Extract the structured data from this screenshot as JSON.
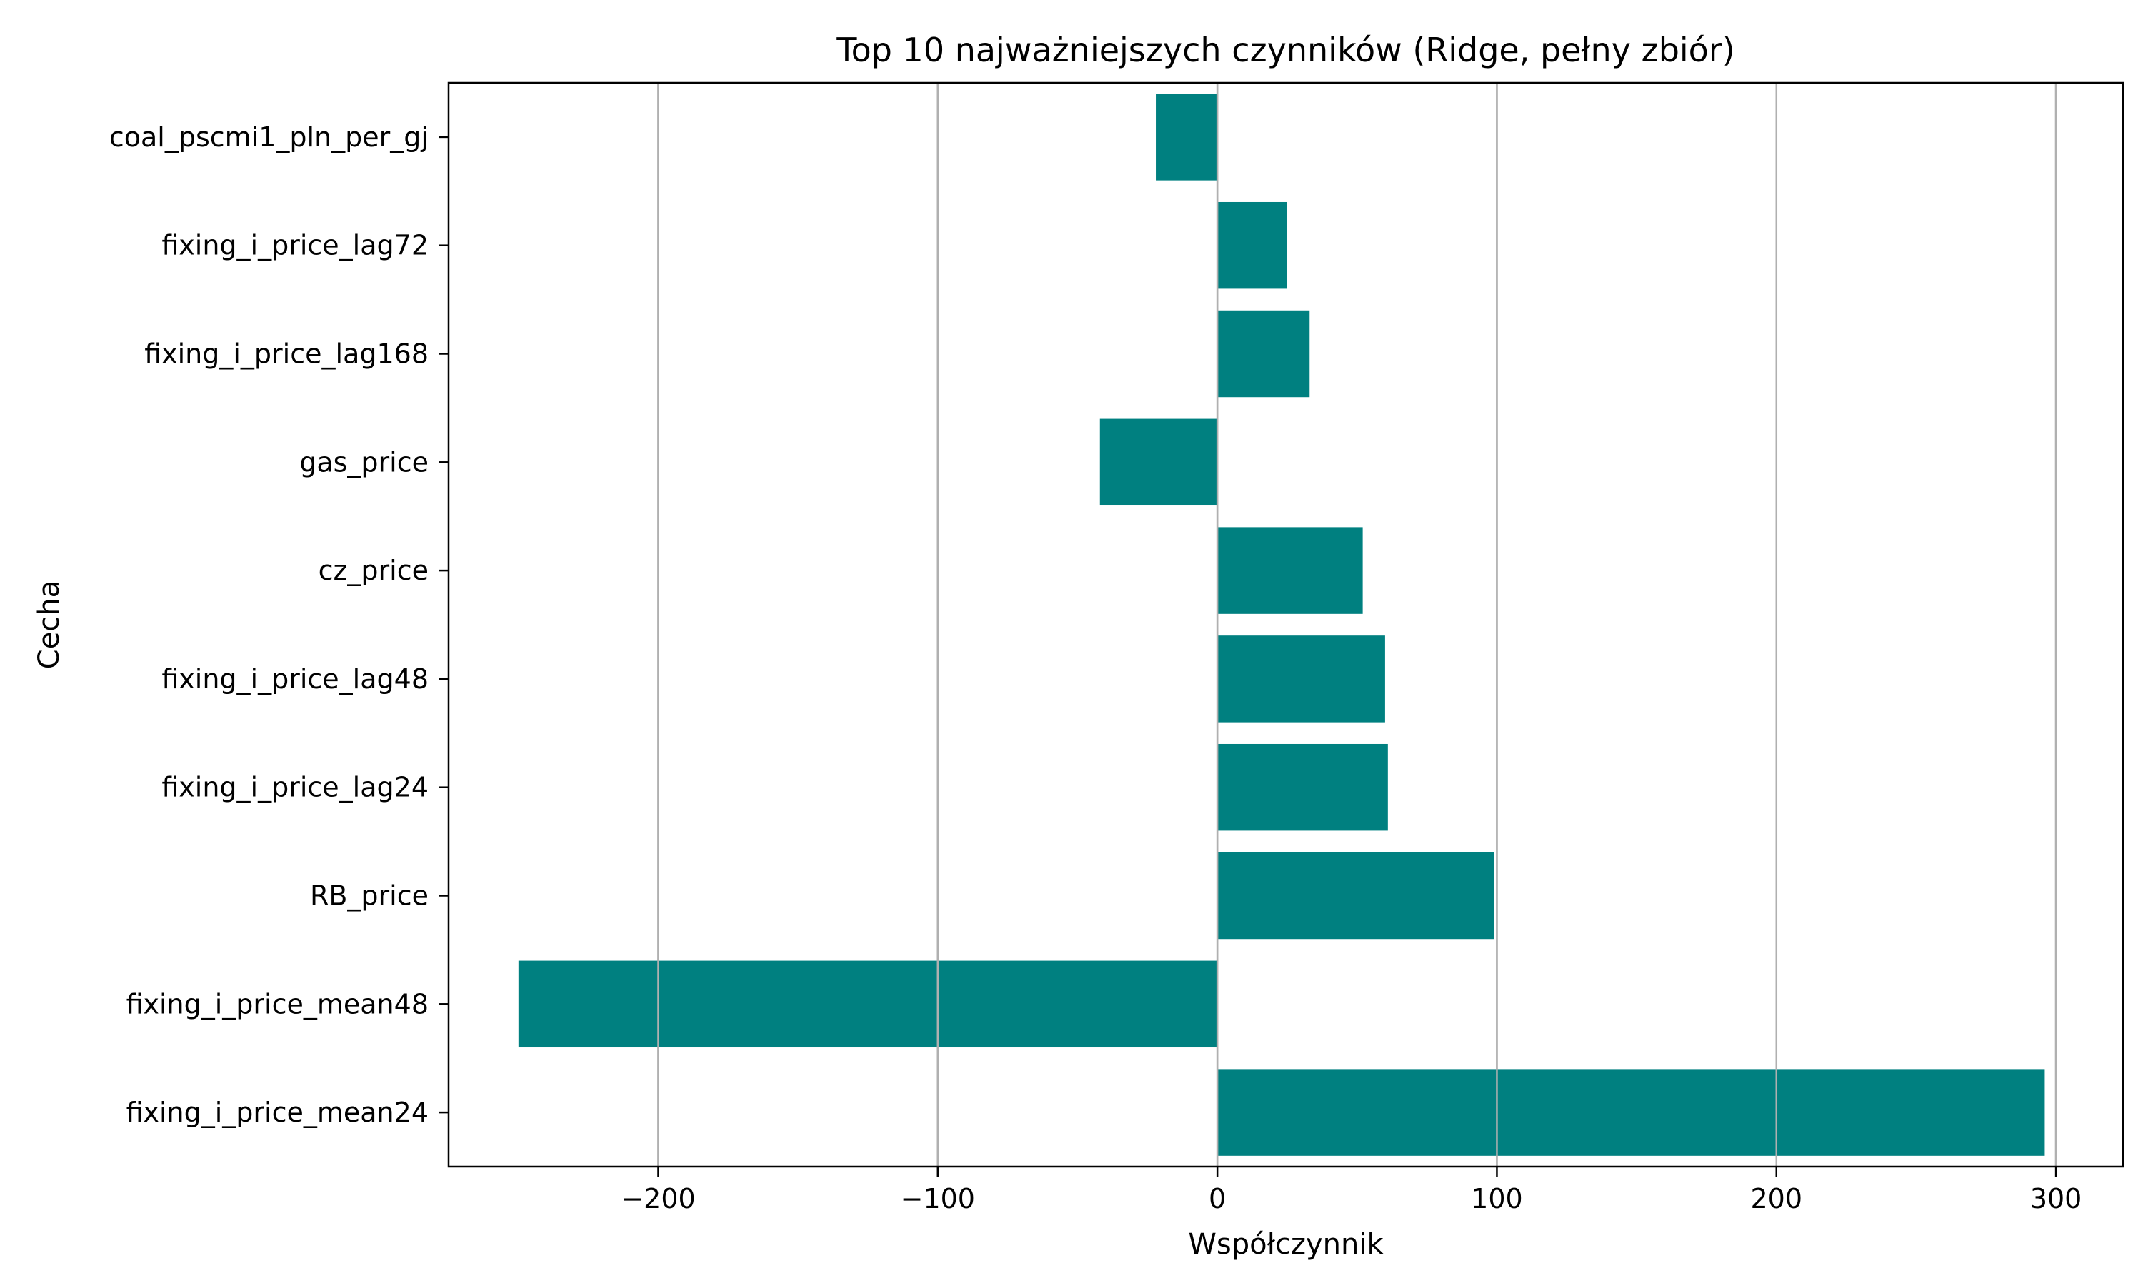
{
  "chart_data": {
    "type": "bar",
    "orientation": "horizontal",
    "title": "Top 10 najważniejszych czynników (Ridge, pełny zbiór)",
    "xlabel": "Współczynnik",
    "ylabel": "Cecha",
    "categories": [
      "coal_pscmi1_pln_per_gj",
      "fixing_i_price_lag72",
      "fixing_i_price_lag168",
      "gas_price",
      "cz_price",
      "fixing_i_price_lag48",
      "fixing_i_price_lag24",
      "RB_price",
      "fixing_i_price_mean48",
      "fixing_i_price_mean24"
    ],
    "values": [
      -22,
      25,
      33,
      -42,
      52,
      60,
      61,
      99,
      -250,
      296
    ],
    "xlim": [
      -275,
      324
    ],
    "xticks": [
      -200,
      -100,
      0,
      100,
      200,
      300
    ],
    "xtick_labels": [
      "−200",
      "−100",
      "0",
      "100",
      "200",
      "300"
    ],
    "grid": "x",
    "bar_color": "#008080",
    "grid_color": "#b0b0b0"
  }
}
